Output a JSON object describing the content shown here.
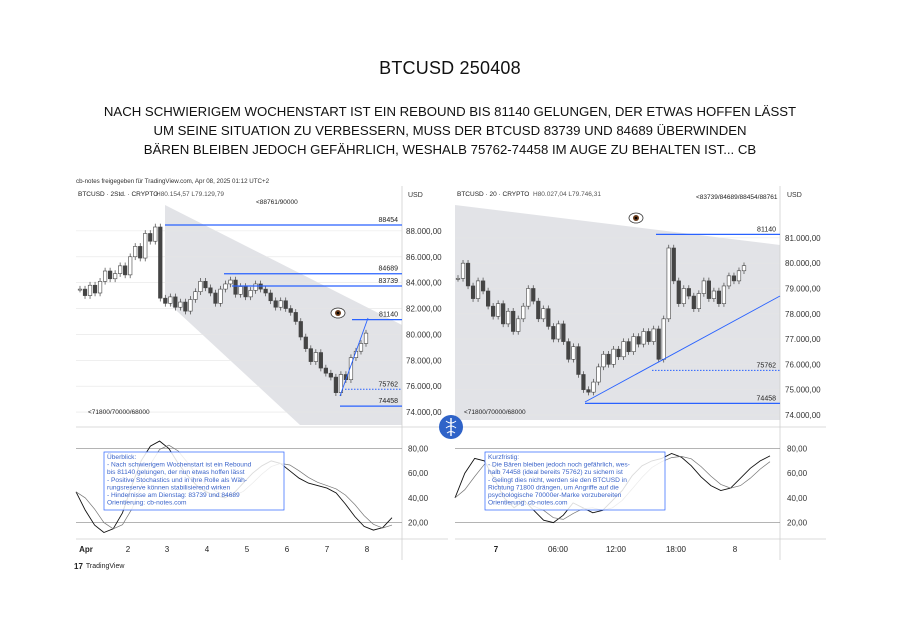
{
  "title": "BTCUSD 250408",
  "headline": [
    "NACH SCHWIERIGEM WOCHENSTART IST EIN REBOUND BIS 81140 GELUNGEN, DER ETWAS HOFFEN LÄSST",
    "UM SEINE SITUATION ZU VERBESSERN, MUSS DER BTCUSD 83739 UND 84689 ÜBERWINDEN",
    "BÄREN BLEIBEN JEDOCH GEFÄHRLICH, WESHALB 75762-74458 IM AUGE ZU BEHALTEN IST... CB"
  ],
  "credit": "cb-notes freigegeben für TradingView.com, Apr 08, 2025 01:12 UTC+2",
  "tradingview_label": "TradingView",
  "chart_data": [
    {
      "type": "candlestick",
      "header": "BTCUSD · 2Std. · CRYPTO",
      "ohlc_text": "H80.154,57 L79.129,79",
      "currency": "USD",
      "ylim": [
        73000,
        90000
      ],
      "y_ticks": [
        "88.000,00",
        "86.000,00",
        "84.000,00",
        "82.000,00",
        "80.000,00",
        "78.000,00",
        "76.000,00",
        "74.000,00"
      ],
      "x_ticks": [
        "Apr",
        "2",
        "3",
        "4",
        "5",
        "6",
        "7",
        "8"
      ],
      "levels": [
        {
          "label": "88454",
          "value": 88454,
          "style": "solid"
        },
        {
          "label": "84689",
          "value": 84689,
          "style": "solid"
        },
        {
          "label": "83739",
          "value": 83739,
          "style": "solid"
        },
        {
          "label": "81140",
          "value": 81140,
          "style": "solid"
        },
        {
          "label": "75762",
          "value": 75762,
          "style": "dotted"
        },
        {
          "label": "74458",
          "value": 74458,
          "style": "solid"
        }
      ],
      "annotations": [
        "<88761/90000",
        "<71800/70000/68000"
      ],
      "closes": [
        83500,
        83000,
        83800,
        83200,
        84100,
        84900,
        84300,
        84700,
        85300,
        84600,
        86000,
        86800,
        85900,
        87800,
        87200,
        88300,
        82800,
        82400,
        82900,
        82100,
        82500,
        81800,
        82700,
        83300,
        84100,
        83600,
        83200,
        82400,
        83500,
        83900,
        84200,
        83100,
        83700,
        82900,
        83400,
        83900,
        83500,
        83200,
        82600,
        82100,
        82600,
        82000,
        81700,
        81000,
        79800,
        78900,
        77900,
        78600,
        77400,
        77000,
        76700,
        75500,
        76900,
        76500,
        78200,
        78700,
        79300,
        80100
      ],
      "oscillator": {
        "y_ticks": [
          "80,00",
          "60,00",
          "40,00",
          "20,00"
        ],
        "ylim": [
          10,
          95
        ],
        "k": [
          45,
          30,
          18,
          12,
          15,
          28,
          50,
          70,
          82,
          86,
          80,
          68,
          58,
          50,
          45,
          42,
          40,
          44,
          52,
          60,
          66,
          70,
          68,
          62,
          56,
          52,
          50,
          48,
          44,
          35,
          25,
          17,
          14,
          16,
          24
        ],
        "textbox": [
          "Überblick:",
          "- Nach schwierigem Wochenstart ist ein Rebound",
          "  bis 81140 gelungen, der nun etwas hoffen lässt",
          "- Positive Stochastics und in ihre Rolle als Wäh-",
          "  rungsreserve können stabilisierend wirken",
          "- Hindernisse am Dienstag: 83739 und 84689",
          "Orientierung: cb-notes.com"
        ]
      }
    },
    {
      "type": "candlestick",
      "header": "BTCUSD · 20 · CRYPTO",
      "ohlc_text": "H80.027,04 L79.746,31",
      "currency": "USD",
      "ylim": [
        73800,
        82300
      ],
      "y_ticks": [
        "81.000,00",
        "80.000,00",
        "79.000,00",
        "78.000,00",
        "77.000,00",
        "76.000,00",
        "75.000,00",
        "74.000,00"
      ],
      "x_ticks": [
        "7",
        "06:00",
        "12:00",
        "18:00",
        "8"
      ],
      "levels": [
        {
          "label": "81140",
          "value": 81140,
          "style": "solid"
        },
        {
          "label": "75762",
          "value": 75762,
          "style": "dotted"
        },
        {
          "label": "74458",
          "value": 74458,
          "style": "solid"
        }
      ],
      "annotations": [
        "<83739/84689/88454/88761",
        "<71800/70000/68000"
      ],
      "closes": [
        79400,
        80000,
        79100,
        78600,
        79300,
        78900,
        78300,
        77900,
        78400,
        77600,
        78100,
        77300,
        77800,
        78300,
        79000,
        78500,
        77800,
        78200,
        77500,
        77000,
        77600,
        76900,
        76200,
        76700,
        75600,
        75000,
        74900,
        75300,
        75900,
        76400,
        76000,
        76600,
        76300,
        76900,
        76500,
        77100,
        76800,
        77300,
        76900,
        77400,
        76200,
        77800,
        80600,
        79300,
        78400,
        79000,
        78700,
        78200,
        78800,
        79300,
        78600,
        78900,
        78400,
        79100,
        79500,
        79300,
        79700,
        79900
      ],
      "oscillator": {
        "y_ticks": [
          "80,00",
          "60,00",
          "40,00",
          "20,00"
        ],
        "ylim": [
          10,
          95
        ],
        "k": [
          40,
          60,
          72,
          70,
          55,
          40,
          32,
          38,
          30,
          22,
          20,
          26,
          36,
          32,
          28,
          30,
          38,
          46,
          58,
          66,
          70,
          72,
          76,
          73,
          66,
          57,
          50,
          46,
          48,
          56,
          64,
          70,
          74
        ],
        "textbox": [
          "Kurzfristig:",
          "- Die Bären bleiben jedoch noch gefährlich, wes-",
          "  halb 74458 (ideal bereits 75762) zu sichern ist",
          "- Gelingt dies nicht, werden sie den BTCUSD in",
          "  Richtung 71800 drängen, um Angriffe auf die",
          "  psychologische 70000er-Marke vorzubereiten",
          "Orientierung: cb-notes.com"
        ]
      }
    }
  ],
  "colors": {
    "level_line": "#2962ff",
    "channel_fill": "#d8dadf",
    "candle": "#444444",
    "grid": "#e5e5e5",
    "note_text": "#3a63c9",
    "osc_line": "#111111"
  },
  "icons": [
    "eye-icon",
    "caduceus-logo-icon",
    "tradingview-logo-icon"
  ]
}
